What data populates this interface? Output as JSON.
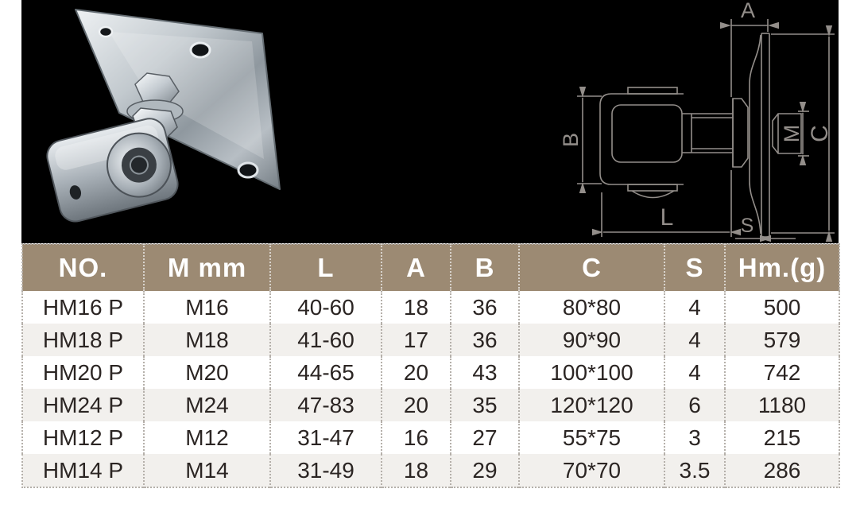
{
  "page": {
    "background": "#ffffff",
    "panel_background": "#000000"
  },
  "drawing": {
    "line_color": "#938e8a",
    "labels": {
      "a": "A",
      "b": "B",
      "c": "C",
      "m": "M",
      "l": "L",
      "s": "S"
    }
  },
  "table": {
    "header_bg": "#9c8a73",
    "header_text_color": "#ffffff",
    "row_alt_bg": "#f2f0ed",
    "text_color": "#2b2523",
    "divider_color": "#b5b0aa",
    "columns": [
      "NO.",
      "M mm",
      "L",
      "A",
      "B",
      "C",
      "S",
      "Hm.(g)"
    ],
    "rows": [
      [
        "HM16 P",
        "M16",
        "40-60",
        "18",
        "36",
        "80*80",
        "4",
        "500"
      ],
      [
        "HM18 P",
        "M18",
        "41-60",
        "17",
        "36",
        "90*90",
        "4",
        "579"
      ],
      [
        "HM20 P",
        "M20",
        "44-65",
        "20",
        "43",
        "100*100",
        "4",
        "742"
      ],
      [
        "HM24 P",
        "M24",
        "47-83",
        "20",
        "35",
        "120*120",
        "6",
        "1180"
      ],
      [
        "HM12 P",
        "M12",
        "31-47",
        "16",
        "27",
        "55*75",
        "3",
        "215"
      ],
      [
        "HM14 P",
        "M14",
        "31-49",
        "18",
        "29",
        "70*70",
        "3.5",
        "286"
      ]
    ]
  }
}
